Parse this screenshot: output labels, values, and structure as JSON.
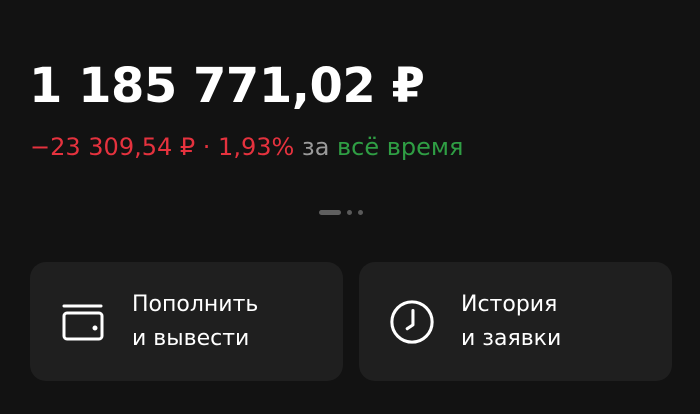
{
  "balance": {
    "amount": "1 185 771,02 ₽"
  },
  "change": {
    "amount": "−23 309,54 ₽",
    "separator": " · ",
    "percent": "1,93%",
    "preposition": " за ",
    "period": "всё время",
    "negative_color": "#e5323e",
    "period_color": "#2f9e44"
  },
  "pager": {
    "pages": 3,
    "active": 1
  },
  "actions": [
    {
      "icon": "wallet-icon",
      "line1": "Пополнить",
      "line2": "и вывести"
    },
    {
      "icon": "clock-icon",
      "line1": "История",
      "line2": "и заявки"
    }
  ]
}
